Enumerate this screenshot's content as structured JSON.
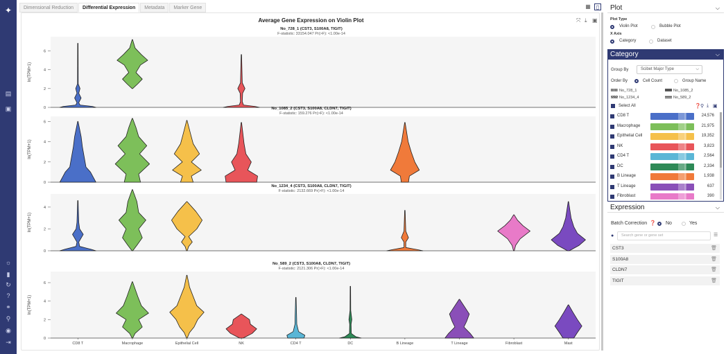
{
  "tabs": [
    "Dimensional Reduction",
    "Differential Expression",
    "Metadata",
    "Marker Gene"
  ],
  "active_tab": 1,
  "plot": {
    "title": "Average Gene Expression on Violin Plot",
    "ylabel": "ln(TPM+1)"
  },
  "chart_data": {
    "type": "violin",
    "categories": [
      "CD8 T",
      "Macrophage",
      "Epithelial Cell",
      "NK",
      "CD4 T",
      "DC",
      "B Lineage",
      "T Lineage",
      "Fibroblast",
      "Mast"
    ],
    "colors": [
      "#4a6fc8",
      "#7dbf5a",
      "#f5c04a",
      "#e8555a",
      "#5ab6d6",
      "#2e8a57",
      "#f07a3a",
      "#8a4fb8",
      "#e87ac8",
      "#7a4ac0"
    ],
    "panels": [
      {
        "name": "No_728_1 (CST3, S100A8, TIGIT)",
        "stats": "F-statistic: 33154.047  Pr(>F): <1.00e-14",
        "ylim": [
          0,
          7.5
        ],
        "yticks": [
          0,
          2,
          4,
          6
        ],
        "violins": [
          {
            "cat": 0,
            "max": 6.8,
            "pts": [
              [
                0,
                1.0
              ],
              [
                0.1,
                0.8
              ],
              [
                0.25,
                0.12
              ],
              [
                0.5,
                0.05
              ],
              [
                1.0,
                0.18
              ],
              [
                1.5,
                0.05
              ],
              [
                2.0,
                0.12
              ],
              [
                2.5,
                0.02
              ],
              [
                6.8,
                0.01
              ]
            ]
          },
          {
            "cat": 1,
            "max": 7.2,
            "pts": [
              [
                2.0,
                0.02
              ],
              [
                2.5,
                0.3
              ],
              [
                3.0,
                0.55
              ],
              [
                3.7,
                0.2
              ],
              [
                4.5,
                0.45
              ],
              [
                5.0,
                0.85
              ],
              [
                5.6,
                0.5
              ],
              [
                6.3,
                0.15
              ],
              [
                7.2,
                0.01
              ]
            ]
          },
          {
            "cat": 3,
            "max": 5.6,
            "pts": [
              [
                0,
                1.0
              ],
              [
                0.1,
                0.75
              ],
              [
                0.25,
                0.12
              ],
              [
                0.6,
                0.05
              ],
              [
                1.5,
                0.07
              ],
              [
                2.0,
                0.2
              ],
              [
                2.6,
                0.05
              ],
              [
                5.6,
                0.01
              ]
            ]
          }
        ]
      },
      {
        "name": "No_1085_2 (CST3, S100A8, CLDN7, TIGIT)",
        "stats": "F-statistic: 159.276  Pr(>F): <1.00e-14",
        "ylim": [
          0,
          6.5
        ],
        "yticks": [
          0,
          2,
          4,
          6
        ],
        "violins": [
          {
            "cat": 0,
            "max": 6.0,
            "pts": [
              [
                0,
                1.0
              ],
              [
                0.5,
                0.85
              ],
              [
                1.0,
                0.7
              ],
              [
                1.5,
                0.45
              ],
              [
                2.5,
                0.35
              ],
              [
                3.5,
                0.25
              ],
              [
                4.5,
                0.18
              ],
              [
                6.0,
                0.01
              ]
            ]
          },
          {
            "cat": 1,
            "max": 6.3,
            "pts": [
              [
                0,
                0.45
              ],
              [
                0.8,
                0.35
              ],
              [
                1.8,
                0.95
              ],
              [
                2.8,
                0.4
              ],
              [
                3.6,
                0.8
              ],
              [
                4.5,
                0.35
              ],
              [
                5.4,
                0.2
              ],
              [
                6.3,
                0.01
              ]
            ]
          },
          {
            "cat": 2,
            "max": 6.1,
            "pts": [
              [
                0,
                0.35
              ],
              [
                0.6,
                0.25
              ],
              [
                1.2,
                0.8
              ],
              [
                2.0,
                0.25
              ],
              [
                2.8,
                0.7
              ],
              [
                3.8,
                0.35
              ],
              [
                4.8,
                0.2
              ],
              [
                6.1,
                0.01
              ]
            ]
          },
          {
            "cat": 3,
            "max": 5.9,
            "pts": [
              [
                0,
                0.85
              ],
              [
                0.6,
                0.9
              ],
              [
                1.2,
                0.35
              ],
              [
                2.0,
                0.55
              ],
              [
                2.8,
                0.25
              ],
              [
                3.8,
                0.15
              ],
              [
                5.9,
                0.01
              ]
            ]
          },
          {
            "cat": 6,
            "max": 5.9,
            "pts": [
              [
                0,
                0.2
              ],
              [
                0.6,
                0.25
              ],
              [
                1.2,
                0.8
              ],
              [
                2.0,
                0.55
              ],
              [
                3.0,
                0.35
              ],
              [
                4.0,
                0.18
              ],
              [
                5.9,
                0.01
              ]
            ]
          }
        ]
      },
      {
        "name": "No_1234_4 (CST3, S100A8, CLDN7, TIGIT)",
        "stats": "F-statistic: 2132.669  Pr(>F): <1.00e-14",
        "ylim": [
          0,
          5.2
        ],
        "yticks": [
          0,
          2,
          4
        ],
        "violins": [
          {
            "cat": 0,
            "max": 4.6,
            "pts": [
              [
                0,
                1.0
              ],
              [
                0.15,
                0.7
              ],
              [
                0.4,
                0.1
              ],
              [
                0.8,
                0.05
              ],
              [
                1.5,
                0.3
              ],
              [
                2.0,
                0.1
              ],
              [
                2.6,
                0.05
              ],
              [
                4.6,
                0.01
              ]
            ]
          },
          {
            "cat": 1,
            "max": 5.6,
            "pts": [
              [
                0,
                0.02
              ],
              [
                0.5,
                0.25
              ],
              [
                1.2,
                0.55
              ],
              [
                2.0,
                0.35
              ],
              [
                2.8,
                0.75
              ],
              [
                3.5,
                0.35
              ],
              [
                4.5,
                0.25
              ],
              [
                5.6,
                0.01
              ]
            ]
          },
          {
            "cat": 2,
            "max": 4.5,
            "pts": [
              [
                0,
                0.02
              ],
              [
                0.4,
                0.1
              ],
              [
                0.8,
                0.3
              ],
              [
                1.3,
                0.1
              ],
              [
                2.0,
                0.55
              ],
              [
                2.8,
                0.85
              ],
              [
                3.6,
                0.5
              ],
              [
                4.5,
                0.01
              ]
            ]
          },
          {
            "cat": 6,
            "max": 3.7,
            "pts": [
              [
                0,
                1.0
              ],
              [
                0.1,
                0.7
              ],
              [
                0.3,
                0.05
              ],
              [
                0.8,
                0.05
              ],
              [
                1.2,
                0.2
              ],
              [
                1.8,
                0.05
              ],
              [
                3.7,
                0.01
              ]
            ]
          },
          {
            "cat": 8,
            "max": 3.3,
            "pts": [
              [
                0,
                0.02
              ],
              [
                0.5,
                0.1
              ],
              [
                1.1,
                0.35
              ],
              [
                1.8,
                0.9
              ],
              [
                2.3,
                0.5
              ],
              [
                2.8,
                0.2
              ],
              [
                3.3,
                0.01
              ]
            ]
          },
          {
            "cat": 9,
            "max": 4.5,
            "pts": [
              [
                0,
                0.05
              ],
              [
                0.5,
                0.6
              ],
              [
                1.0,
                0.95
              ],
              [
                1.6,
                0.5
              ],
              [
                2.2,
                0.3
              ],
              [
                3.0,
                0.15
              ],
              [
                4.5,
                0.01
              ]
            ]
          }
        ]
      },
      {
        "name": "No_589_2 (CST3, S100A8, CLDN7, TIGIT)",
        "stats": "F-statistic: 2121.306  Pr(>F): <1.00e-14",
        "ylim": [
          0,
          7.2
        ],
        "yticks": [
          0,
          2,
          4,
          6
        ],
        "violins": [
          {
            "cat": 1,
            "max": 6.1,
            "pts": [
              [
                0,
                0.02
              ],
              [
                0.5,
                0.15
              ],
              [
                1.2,
                0.55
              ],
              [
                2.0,
                0.35
              ],
              [
                2.7,
                0.9
              ],
              [
                3.5,
                0.5
              ],
              [
                4.5,
                0.3
              ],
              [
                6.1,
                0.01
              ]
            ]
          },
          {
            "cat": 2,
            "max": 6.8,
            "pts": [
              [
                0,
                0.02
              ],
              [
                0.6,
                0.15
              ],
              [
                1.2,
                0.4
              ],
              [
                2.0,
                0.6
              ],
              [
                2.8,
                0.95
              ],
              [
                3.5,
                0.55
              ],
              [
                4.5,
                0.35
              ],
              [
                5.5,
                0.15
              ],
              [
                6.8,
                0.01
              ]
            ]
          },
          {
            "cat": 3,
            "max": 2.6,
            "pts": [
              [
                0,
                0.1
              ],
              [
                0.5,
                0.6
              ],
              [
                1.0,
                0.85
              ],
              [
                1.5,
                0.5
              ],
              [
                2.0,
                0.45
              ],
              [
                2.6,
                0.01
              ]
            ]
          },
          {
            "cat": 4,
            "max": 4.4,
            "pts": [
              [
                0,
                0.45
              ],
              [
                0.3,
                0.5
              ],
              [
                0.7,
                0.15
              ],
              [
                1.5,
                0.05
              ],
              [
                2.5,
                0.04
              ],
              [
                4.4,
                0.01
              ]
            ]
          },
          {
            "cat": 5,
            "max": 5.6,
            "pts": [
              [
                0,
                0.6
              ],
              [
                0.15,
                0.3
              ],
              [
                0.5,
                0.05
              ],
              [
                1.5,
                0.04
              ],
              [
                2.0,
                0.08
              ],
              [
                3.0,
                0.02
              ],
              [
                5.6,
                0.01
              ]
            ]
          },
          {
            "cat": 7,
            "max": 4.2,
            "pts": [
              [
                0,
                0.8
              ],
              [
                0.5,
                0.6
              ],
              [
                1.2,
                0.25
              ],
              [
                1.8,
                0.4
              ],
              [
                2.6,
                0.55
              ],
              [
                3.5,
                0.25
              ],
              [
                4.2,
                0.01
              ]
            ]
          },
          {
            "cat": 9,
            "max": 3.6,
            "pts": [
              [
                0,
                0.3
              ],
              [
                0.6,
                0.5
              ],
              [
                1.3,
                0.75
              ],
              [
                2.0,
                0.5
              ],
              [
                2.8,
                0.25
              ],
              [
                3.6,
                0.01
              ]
            ]
          }
        ]
      }
    ]
  },
  "plot_panel": {
    "title": "Plot",
    "plot_type_label": "Plot Type",
    "plot_types": [
      "Violin Plot",
      "Bubble Plot"
    ],
    "xaxis_label": "X Axis",
    "xaxis_options": [
      "Category",
      "Dataset"
    ]
  },
  "category_panel": {
    "title": "Category",
    "group_by_label": "Group By",
    "group_by_value": "Scibet Major Type",
    "order_by_label": "Order By",
    "order_options": [
      "Cell Count",
      "Group Name"
    ],
    "datasets": [
      "No_728_1",
      "No_1085_2",
      "No_1234_4",
      "No_589_2"
    ],
    "select_all": "Select All",
    "items": [
      {
        "name": "CD8 T",
        "count": "24,576"
      },
      {
        "name": "Macrophage",
        "count": "21,975"
      },
      {
        "name": "Epithelial Cell",
        "count": "19,352"
      },
      {
        "name": "NK",
        "count": "3,823"
      },
      {
        "name": "CD4 T",
        "count": "2,564"
      },
      {
        "name": "DC",
        "count": "2,334"
      },
      {
        "name": "B Lineage",
        "count": "1,938"
      },
      {
        "name": "T Lineage",
        "count": "637"
      },
      {
        "name": "Fibroblast",
        "count": "390"
      }
    ]
  },
  "expression_panel": {
    "title": "Expression",
    "batch_label": "Batch Correction",
    "batch_options": [
      "No",
      "Yes"
    ],
    "search_placeholder": "Search gene or gene set",
    "genes": [
      "CST3",
      "S100A8",
      "CLDN7",
      "TIGIT"
    ]
  }
}
